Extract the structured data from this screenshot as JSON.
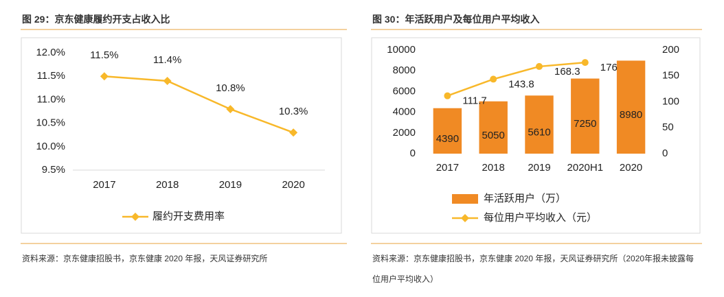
{
  "chart_data": [
    {
      "type": "line",
      "title": "图 29：京东健康履约开支占收入比",
      "source": "资料来源：京东健康招股书，京东健康 2020 年报，天风证券研究所",
      "categories": [
        "2017",
        "2018",
        "2019",
        "2020"
      ],
      "series": [
        {
          "name": "履约开支费用率",
          "color": "#f8b82a",
          "values": [
            11.5,
            11.4,
            10.8,
            10.3
          ],
          "value_labels": [
            "11.5%",
            "11.4%",
            "10.8%",
            "10.3%"
          ]
        }
      ],
      "ylim": [
        9.5,
        12.0
      ],
      "yticks": [
        {
          "value": 9.5,
          "label": "9.5%"
        },
        {
          "value": 10.0,
          "label": "10.0%"
        },
        {
          "value": 10.5,
          "label": "10.5%"
        },
        {
          "value": 11.0,
          "label": "11.0%"
        },
        {
          "value": 11.5,
          "label": "11.5%"
        },
        {
          "value": 12.0,
          "label": "12.0%"
        }
      ],
      "legend": "bottom"
    },
    {
      "type": "bar",
      "title": "图 30：年活跃用户及每位用户平均收入",
      "source": "资料来源：京东健康招股书，京东健康 2020 年报，天风证券研究所（2020年报未披露每位用户平均收入）",
      "categories": [
        "2017",
        "2018",
        "2019",
        "2020H1",
        "2020"
      ],
      "series": [
        {
          "name": "年活跃用户（万）",
          "color": "#f08a24",
          "values": [
            4390,
            5050,
            5610,
            7250,
            8980
          ]
        },
        {
          "name": "每位用户平均收入（元）",
          "color": "#f8b82a",
          "axis": "y2",
          "values": [
            111.7,
            143.8,
            168.3,
            176,
            null
          ]
        }
      ],
      "ylim": [
        0,
        10000
      ],
      "yticks": [
        0,
        2000,
        4000,
        6000,
        8000,
        10000
      ],
      "y2lim": [
        0,
        200
      ],
      "y2ticks": [
        0,
        50,
        100,
        150,
        200
      ],
      "legend": "bottom"
    }
  ]
}
